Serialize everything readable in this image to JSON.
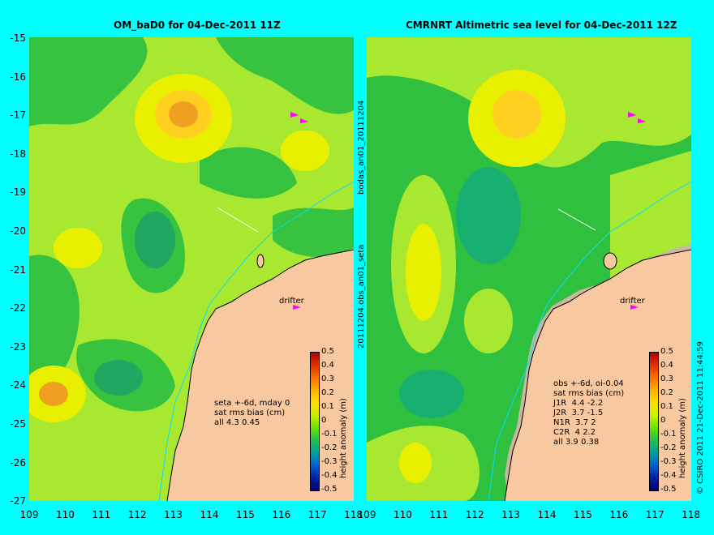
{
  "left_panel": {
    "title": "OM_baD0 for 04-Dec-2011 11Z",
    "drifter_label": "drifter",
    "info_lines": [
      "seta +-6d, mday 0",
      "sat rms bias (cm)",
      "all 4.3 0.45"
    ]
  },
  "right_panel": {
    "title": "CMRNRT Altimetric sea level  for 04-Dec-2011 12Z",
    "drifter_label": "drifter",
    "info_lines": [
      "obs +-6d, oi-0.04",
      "sat rms bias (cm)",
      "J1R  4.4 -2.2",
      "J2R  3.7 -1.5",
      "N1R  3.7 2",
      "C2R  4 2.2",
      "all 3.9 0.38"
    ]
  },
  "side_labels": {
    "top": "bodas_an01_20111204",
    "bottom": "20111204.obs_an01_seta",
    "credit": "© CSIRO 2011   21-Dec-2011 11:44:59"
  },
  "axes": {
    "lat_labels": [
      "-15",
      "-16",
      "-17",
      "-18",
      "-19",
      "-20",
      "-21",
      "-22",
      "-23",
      "-24",
      "-25",
      "-26",
      "-27"
    ],
    "lon_labels": [
      "109",
      "110",
      "111",
      "112",
      "113",
      "114",
      "115",
      "116",
      "117",
      "118"
    ]
  },
  "colorbar": {
    "title": "height anomaly (m)",
    "ticks": [
      "0.5",
      "0.4",
      "0.3",
      "0.2",
      "0.1",
      "0",
      "-0.1",
      "-0.2",
      "-0.3",
      "-0.4",
      "-0.5"
    ],
    "colors": [
      "#b00000",
      "#e03000",
      "#ff7000",
      "#ffb000",
      "#ffe000",
      "#c8f000",
      "#70e000",
      "#20c050",
      "#00a0a0",
      "#0060d0",
      "#0020a0",
      "#000070"
    ]
  },
  "map_colors": {
    "land": "#f8c8a0",
    "ocean_base": "#a8e830",
    "dark_green": "#30c040",
    "light_yellow": "#e8f000",
    "orange": "#f0a020",
    "yellow": "#ffd020",
    "shore": "#c8b8a0",
    "depth_line": "#00e0ff",
    "drifter": "#ff00ff"
  }
}
